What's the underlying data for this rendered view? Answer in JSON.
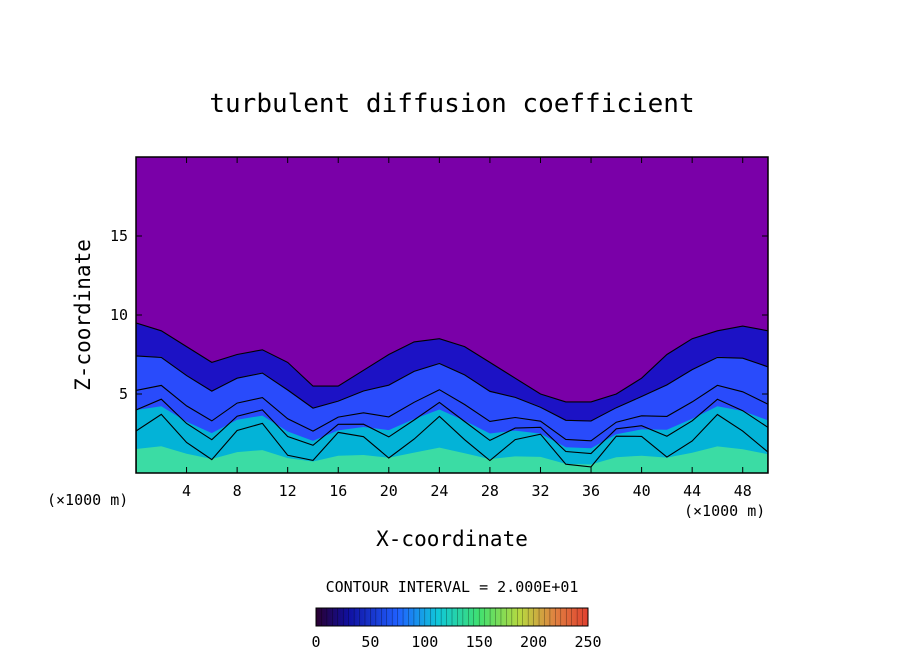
{
  "chart_data": {
    "type": "heatmap",
    "title": "turbulent diffusion coefficient",
    "xlabel": "X-coordinate",
    "ylabel": "Z-coordinate",
    "x_unit": "(×1000 m)",
    "z_unit": "(×1000 m)",
    "xlim": [
      0,
      50
    ],
    "ylim": [
      0,
      20
    ],
    "x_ticks": [
      4,
      8,
      12,
      16,
      20,
      24,
      28,
      32,
      36,
      40,
      44,
      48
    ],
    "y_ticks": [
      5,
      10,
      15
    ],
    "contour_interval_label": "CONTOUR INTERVAL = 2.000E+01",
    "colorbar": {
      "range": [
        0,
        250
      ],
      "ticks": [
        0,
        50,
        100,
        150,
        200,
        250
      ]
    },
    "turbulent_layer_top": {
      "x": [
        0,
        2,
        4,
        6,
        8,
        10,
        12,
        14,
        16,
        18,
        20,
        22,
        24,
        26,
        28,
        30,
        32,
        34,
        36,
        38,
        40,
        42,
        44,
        46,
        48,
        50
      ],
      "z": [
        9.5,
        9.0,
        8.0,
        7.0,
        7.5,
        7.8,
        7.0,
        5.5,
        5.5,
        6.5,
        7.5,
        8.3,
        8.5,
        8.0,
        7.0,
        6.0,
        5.0,
        4.5,
        4.5,
        5.0,
        6.0,
        7.5,
        8.5,
        9.0,
        9.3,
        9.0
      ]
    },
    "field_colors": {
      "background": "#7a00a8",
      "low": "#1414c8",
      "mid": "#2a50ff",
      "high": "#00bcd4",
      "peak": "#40e0a0"
    }
  }
}
